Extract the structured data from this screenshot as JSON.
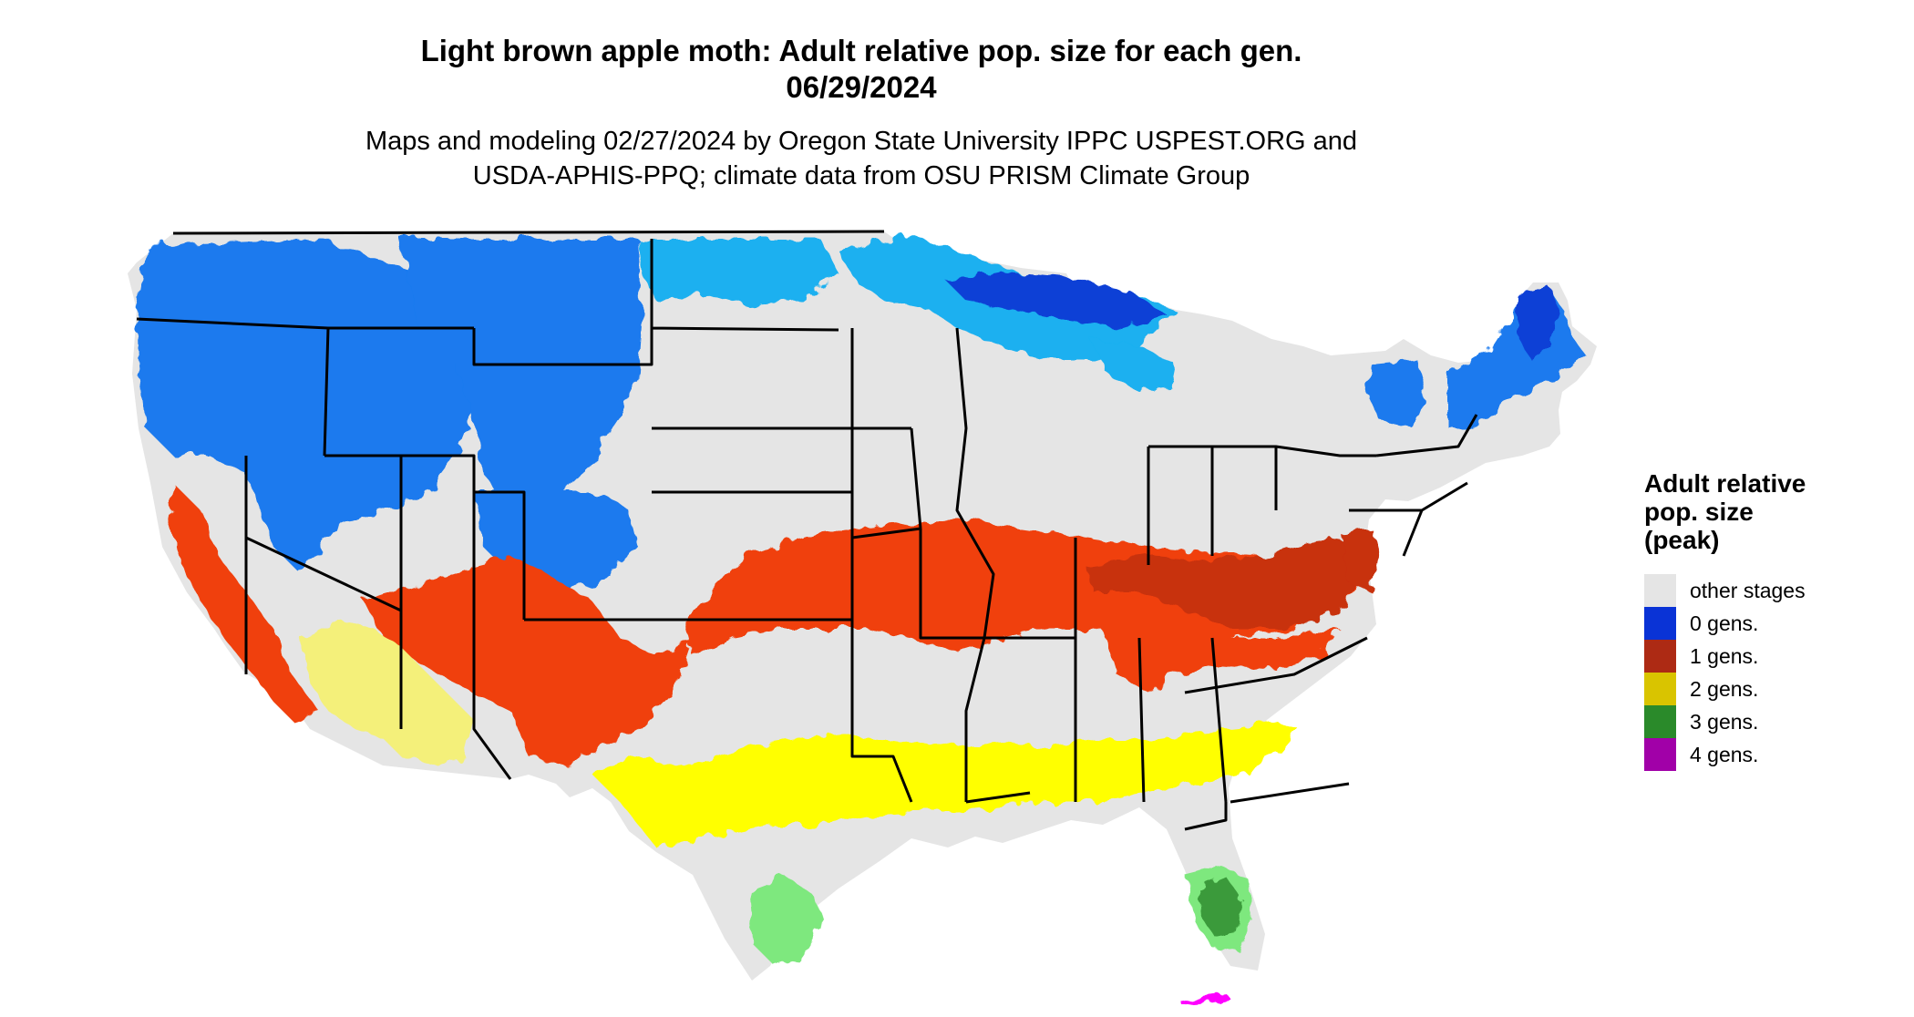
{
  "header": {
    "title_line1": "Light brown apple moth: Adult relative pop. size for each gen.",
    "title_line2": "06/29/2024",
    "subtitle_line1": "Maps and modeling 02/27/2024 by Oregon State University IPPC USPEST.ORG and",
    "subtitle_line2": "USDA-APHIS-PPQ; climate data from OSU PRISM Climate Group"
  },
  "legend": {
    "title_line1": "Adult relative",
    "title_line2": "pop. size",
    "title_line3": "(peak)",
    "items": [
      {
        "label": "other stages",
        "color": "#e5e5e5"
      },
      {
        "label": "0 gens.",
        "color": "#0a33d6"
      },
      {
        "label": "1 gens.",
        "color": "#ad2a14"
      },
      {
        "label": "2 gens.",
        "color": "#d9c400"
      },
      {
        "label": "3 gens.",
        "color": "#2a8a2a"
      },
      {
        "label": "4 gens.",
        "color": "#a100a8"
      }
    ]
  },
  "map_colors": {
    "land": "#e5e5e5",
    "zero_light": "#1ab0f0",
    "zero_mid": "#1a7aee",
    "zero_dark": "#0d3fd6",
    "one_bright": "#f04010",
    "one_dark": "#c83010",
    "two_bright": "#ffff00",
    "two_pale": "#f4f07a",
    "three_light": "#7ee87e",
    "three_dark": "#3a9a3a",
    "four_bright": "#ff00ff",
    "border": "#000000"
  }
}
